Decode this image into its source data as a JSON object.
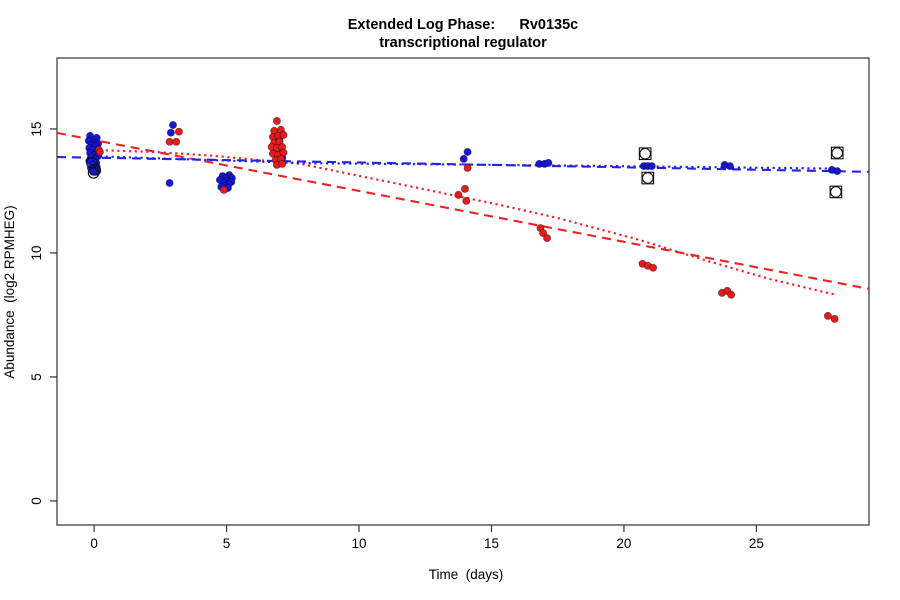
{
  "title": {
    "line1": "Extended Log Phase:      Rv0135c",
    "line2": "transcriptional regulator"
  },
  "chart_data": {
    "type": "scatter",
    "title": "Extended Log Phase:      Rv0135c",
    "subtitle": "transcriptional regulator",
    "xlabel": "Time  (days)",
    "ylabel": "Abundance  (log2 RPMHEG)",
    "xlim": [
      -1.4,
      29.25
    ],
    "ylim": [
      -0.97,
      17.86
    ],
    "x_ticks": [
      0,
      5,
      10,
      15,
      20,
      25
    ],
    "y_ticks": [
      0,
      5,
      10,
      15
    ],
    "grid": false,
    "legend": "none",
    "colors": {
      "blue": "#1616d8",
      "red": "#e41c1c",
      "blue_line": "#2222ee",
      "red_line": "#ee2222",
      "flag": "#111111",
      "axis": "#333333"
    },
    "series": [
      {
        "name": "blue-series",
        "color_key": "blue",
        "points": [
          [
            -0.15,
            14.72
          ],
          [
            0.1,
            14.64
          ],
          [
            -0.2,
            14.52
          ],
          [
            0.0,
            14.44
          ],
          [
            0.15,
            14.4
          ],
          [
            -0.1,
            14.35
          ],
          [
            0.05,
            14.31
          ],
          [
            -0.18,
            14.23
          ],
          [
            0.1,
            14.19
          ],
          [
            -0.05,
            14.15
          ],
          [
            0.12,
            14.07
          ],
          [
            -0.15,
            14.03
          ],
          [
            0.02,
            13.95
          ],
          [
            0.15,
            13.91
          ],
          [
            -0.1,
            13.87
          ],
          [
            0.05,
            13.79
          ],
          [
            -0.18,
            13.71
          ],
          [
            0.08,
            13.63
          ],
          [
            -0.05,
            13.55
          ],
          [
            0.1,
            13.47
          ],
          [
            -0.12,
            13.43
          ],
          [
            0.03,
            13.35
          ],
          [
            0.12,
            13.3
          ],
          [
            -0.05,
            13.27
          ],
          [
            2.98,
            15.16
          ],
          [
            2.9,
            14.85
          ],
          [
            2.85,
            12.82
          ],
          [
            4.85,
            13.1
          ],
          [
            5.1,
            13.14
          ],
          [
            4.95,
            13.02
          ],
          [
            5.2,
            13.02
          ],
          [
            4.75,
            12.94
          ],
          [
            5.0,
            12.9
          ],
          [
            5.18,
            12.86
          ],
          [
            4.9,
            12.82
          ],
          [
            5.08,
            12.78
          ],
          [
            4.95,
            12.7
          ],
          [
            4.8,
            12.66
          ],
          [
            5.05,
            12.62
          ],
          [
            7.0,
            14.6
          ],
          [
            6.85,
            14.15
          ],
          [
            7.05,
            14.11
          ],
          [
            6.9,
            13.87
          ],
          [
            7.1,
            13.83
          ],
          [
            6.95,
            13.63
          ],
          [
            14.1,
            14.07
          ],
          [
            13.95,
            13.79
          ],
          [
            16.8,
            13.59
          ],
          [
            17.0,
            13.59
          ],
          [
            17.15,
            13.63
          ],
          [
            20.75,
            13.5
          ],
          [
            20.9,
            13.5
          ],
          [
            21.05,
            13.5
          ],
          [
            23.8,
            13.55
          ],
          [
            24.0,
            13.5
          ],
          [
            27.85,
            13.35
          ],
          [
            28.05,
            13.3
          ]
        ]
      },
      {
        "name": "red-series",
        "color_key": "red",
        "points": [
          [
            0.18,
            14.15
          ],
          [
            0.22,
            14.07
          ],
          [
            3.2,
            14.89
          ],
          [
            2.85,
            14.48
          ],
          [
            3.1,
            14.48
          ],
          [
            4.9,
            12.54
          ],
          [
            6.9,
            15.32
          ],
          [
            6.8,
            14.92
          ],
          [
            7.05,
            14.96
          ],
          [
            6.75,
            14.68
          ],
          [
            6.95,
            14.72
          ],
          [
            7.15,
            14.76
          ],
          [
            6.8,
            14.44
          ],
          [
            7.0,
            14.48
          ],
          [
            6.7,
            14.27
          ],
          [
            6.9,
            14.23
          ],
          [
            7.1,
            14.27
          ],
          [
            6.75,
            14.0
          ],
          [
            6.95,
            13.96
          ],
          [
            7.15,
            14.04
          ],
          [
            6.85,
            13.75
          ],
          [
            7.05,
            13.79
          ],
          [
            6.9,
            13.55
          ],
          [
            7.1,
            13.59
          ],
          [
            14.1,
            13.43
          ],
          [
            14.0,
            12.58
          ],
          [
            13.75,
            12.34
          ],
          [
            14.05,
            12.1
          ],
          [
            16.85,
            11.0
          ],
          [
            16.95,
            10.8
          ],
          [
            17.1,
            10.6
          ],
          [
            20.7,
            9.56
          ],
          [
            20.9,
            9.48
          ],
          [
            21.1,
            9.4
          ],
          [
            23.7,
            8.39
          ],
          [
            23.9,
            8.47
          ],
          [
            24.05,
            8.31
          ],
          [
            27.7,
            7.46
          ],
          [
            27.95,
            7.34
          ]
        ]
      }
    ],
    "trend_lines": [
      {
        "name": "red-dashed-fit",
        "color_key": "red_line",
        "style": "dashed",
        "points": [
          [
            -1.4,
            14.84
          ],
          [
            29.25,
            8.55
          ]
        ]
      },
      {
        "name": "red-dotted-trend",
        "color_key": "red_line",
        "style": "dotted",
        "points": [
          [
            0.0,
            14.15
          ],
          [
            2.3,
            14.07
          ],
          [
            4.6,
            13.91
          ],
          [
            7.8,
            13.59
          ],
          [
            11.5,
            12.78
          ],
          [
            15.3,
            11.94
          ],
          [
            17.5,
            11.41
          ],
          [
            20.6,
            10.52
          ],
          [
            22.9,
            9.76
          ],
          [
            25.5,
            8.95
          ],
          [
            28.0,
            8.31
          ]
        ]
      },
      {
        "name": "blue-dashed-fit",
        "color_key": "blue_line",
        "style": "dashed",
        "points": [
          [
            -1.4,
            13.87
          ],
          [
            29.25,
            13.27
          ]
        ]
      },
      {
        "name": "blue-dotted-trend",
        "color_key": "blue_line",
        "style": "dotted",
        "points": [
          [
            0.0,
            13.9
          ],
          [
            8.0,
            13.62
          ],
          [
            18.0,
            13.52
          ],
          [
            28.0,
            13.4
          ]
        ]
      }
    ],
    "flagged_points": [
      {
        "x": -0.08,
        "y": 13.63,
        "shapes": "circle"
      },
      {
        "x": 0.04,
        "y": 13.35,
        "shapes": "circle"
      },
      {
        "x": -0.02,
        "y": 13.23,
        "shapes": "circle"
      },
      {
        "x": 20.8,
        "y": 14.0,
        "shapes": "circle-square"
      },
      {
        "x": 20.9,
        "y": 13.02,
        "shapes": "circle-square"
      },
      {
        "x": 28.05,
        "y": 14.03,
        "shapes": "circle-square"
      },
      {
        "x": 28.0,
        "y": 12.46,
        "shapes": "circle-square"
      }
    ]
  }
}
